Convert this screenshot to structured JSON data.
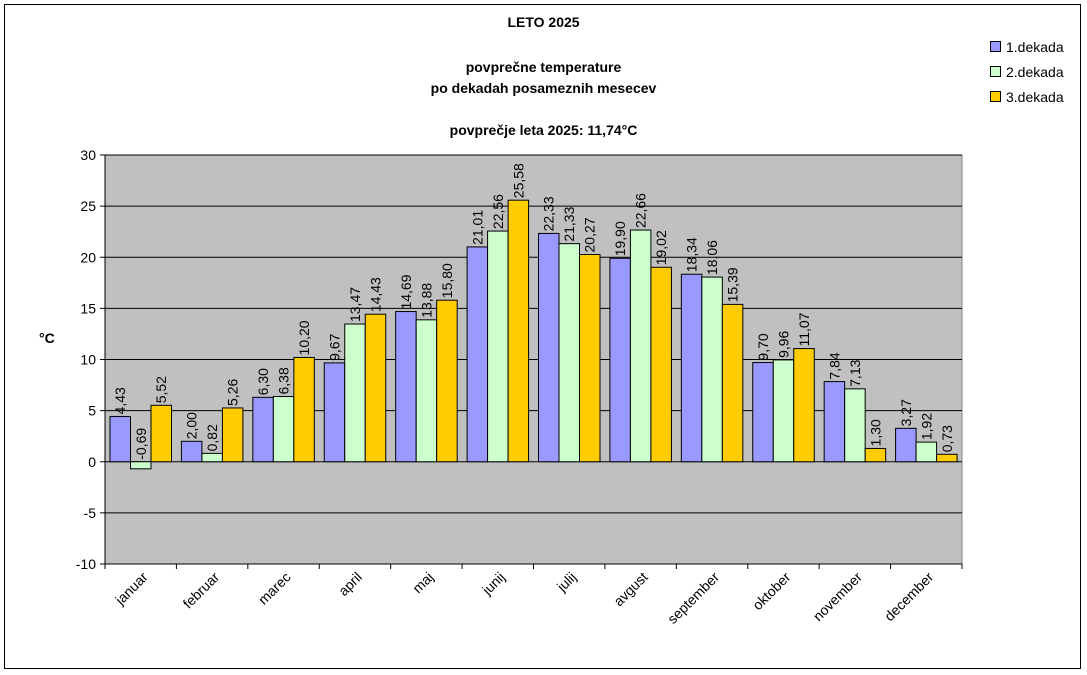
{
  "chart_data": {
    "type": "bar",
    "title": "LETO 2025",
    "subtitle_lines": [
      "povprečne temperature",
      "po dekadah posameznih mesecev"
    ],
    "annotation": "povprečje leta 2025: 11,74°C",
    "ylabel": "°C",
    "xlabel": "",
    "ylim": [
      -10,
      30
    ],
    "yticks": [
      30,
      25,
      20,
      15,
      10,
      5,
      0,
      -5,
      -10
    ],
    "grid": true,
    "legend_position": "top-right",
    "categories": [
      "januar",
      "februar",
      "marec",
      "april",
      "maj",
      "junij",
      "julij",
      "avgust",
      "september",
      "oktober",
      "november",
      "december"
    ],
    "series": [
      {
        "name": "1.dekada",
        "color": "#9999ff",
        "values": [
          4.43,
          2.0,
          6.3,
          9.67,
          14.69,
          21.01,
          22.33,
          19.9,
          18.34,
          9.7,
          7.84,
          3.27
        ],
        "labels": [
          "4,43",
          "2,00",
          "6,30",
          "9,67",
          "14,69",
          "21,01",
          "22,33",
          "19,90",
          "18,34",
          "9,70",
          "7,84",
          "3,27"
        ]
      },
      {
        "name": "2.dekada",
        "color": "#ccffcc",
        "values": [
          -0.69,
          0.82,
          6.38,
          13.47,
          13.88,
          22.56,
          21.33,
          22.66,
          18.06,
          9.96,
          7.13,
          1.92
        ],
        "labels": [
          "-0,69",
          "0,82",
          "6,38",
          "13,47",
          "13,88",
          "22,56",
          "21,33",
          "22,66",
          "18,06",
          "9,96",
          "7,13",
          "1,92"
        ]
      },
      {
        "name": "3.dekada",
        "color": "#ffcc00",
        "values": [
          5.52,
          5.26,
          10.2,
          14.43,
          15.8,
          25.58,
          20.27,
          19.02,
          15.39,
          11.07,
          1.3,
          0.73
        ],
        "labels": [
          "5,52",
          "5,26",
          "10,20",
          "14,43",
          "15,80",
          "25,58",
          "20,27",
          "19,02",
          "15,39",
          "11,07",
          "1,30",
          "0,73"
        ]
      }
    ],
    "plot_area_color": "#c0c0c0"
  }
}
